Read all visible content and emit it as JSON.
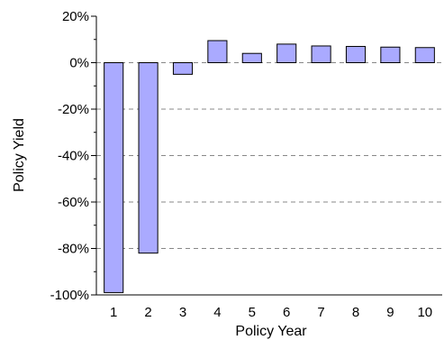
{
  "chart_data": {
    "type": "bar",
    "title": "",
    "xlabel": "Policy Year",
    "ylabel": "Policy Yield",
    "categories": [
      "1",
      "2",
      "3",
      "4",
      "5",
      "6",
      "7",
      "8",
      "9",
      "10"
    ],
    "values": [
      -99,
      -82,
      -5,
      9.5,
      4,
      8,
      7.2,
      7,
      6.7,
      6.5
    ],
    "ylim": [
      -100,
      20
    ],
    "yticks": [
      20,
      0,
      -20,
      -40,
      -60,
      -80,
      -100
    ],
    "ytick_labels": [
      "20%",
      "0%",
      "-20%",
      "-40%",
      "-60%",
      "-80%",
      "-100%"
    ],
    "grid": "dashed horizontal",
    "bar_color": "#aaaaff",
    "bar_edge_color": "#000000"
  }
}
